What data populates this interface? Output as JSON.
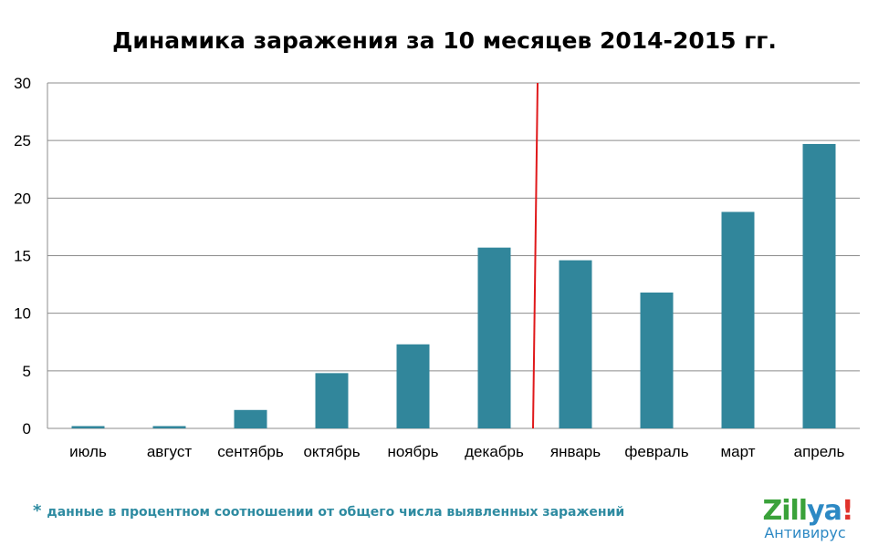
{
  "chart_data": {
    "type": "bar",
    "title": "Динамика заражения за 10 месяцев 2014-2015 гг.",
    "categories": [
      "июль",
      "август",
      "сентябрь",
      "октябрь",
      "ноябрь",
      "декабрь",
      "январь",
      "февраль",
      "март",
      "апрель"
    ],
    "values": [
      0.2,
      0.2,
      1.6,
      4.8,
      7.3,
      15.7,
      14.6,
      11.8,
      18.8,
      24.7
    ],
    "ylim": [
      0,
      30
    ],
    "yticks": [
      "0",
      "5",
      "10",
      "15",
      "20",
      "25",
      "30"
    ],
    "grid": true,
    "bar_color": "#31869b",
    "separator": {
      "between": [
        "декабрь",
        "январь"
      ],
      "color": "#e0191b"
    }
  },
  "footnote": {
    "star": "*",
    "text": "данные в процентном соотношении от общего числа выявленных заражений"
  },
  "logo": {
    "zil": "Zill",
    "ya": "ya",
    "ex": "!",
    "subtitle": "Антивирус"
  }
}
